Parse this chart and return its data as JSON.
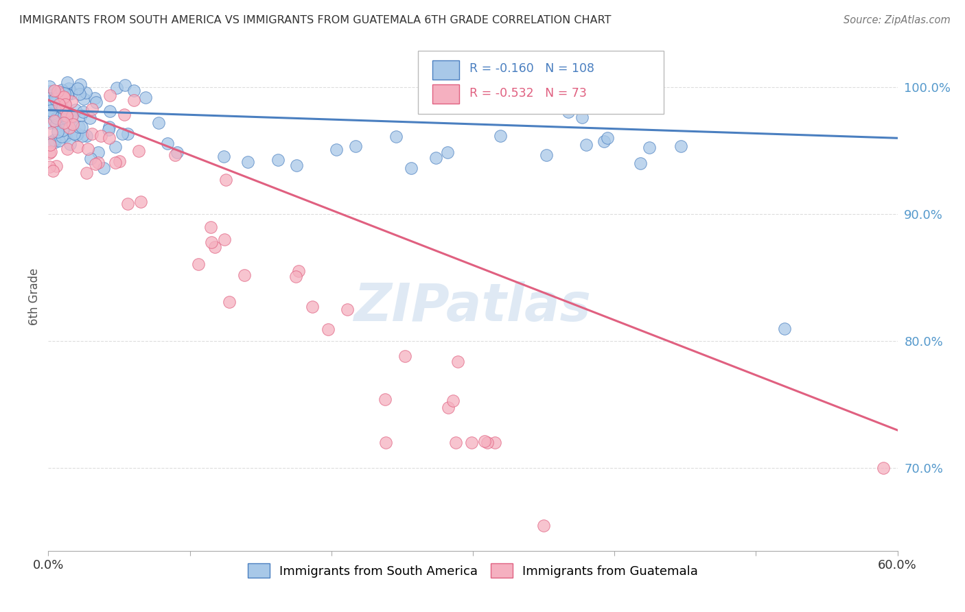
{
  "title": "IMMIGRANTS FROM SOUTH AMERICA VS IMMIGRANTS FROM GUATEMALA 6TH GRADE CORRELATION CHART",
  "source": "Source: ZipAtlas.com",
  "ylabel": "6th Grade",
  "r_south_america": "-0.160",
  "n_south_america": "108",
  "r_guatemala": "-0.532",
  "n_guatemala": "73",
  "color_south_america": "#a8c8e8",
  "color_guatemala": "#f5b0c0",
  "line_color_south_america": "#4a7fc0",
  "line_color_guatemala": "#e06080",
  "legend_label_1": "Immigrants from South America",
  "legend_label_2": "Immigrants from Guatemala",
  "background_color": "#ffffff",
  "watermark": "ZIPatlas",
  "grid_color": "#dddddd",
  "ytick_color": "#5599cc",
  "title_color": "#333333",
  "source_color": "#777777",
  "xlim": [
    0.0,
    0.6
  ],
  "ylim": [
    0.635,
    1.035
  ],
  "yticks": [
    0.7,
    0.8,
    0.9,
    1.0
  ],
  "ytick_labels": [
    "70.0%",
    "80.0%",
    "90.0%",
    "100.0%"
  ],
  "sa_trend_x": [
    0.0,
    0.6
  ],
  "sa_trend_y": [
    0.982,
    0.96
  ],
  "gt_trend_x": [
    0.0,
    0.6
  ],
  "gt_trend_y": [
    0.99,
    0.73
  ]
}
